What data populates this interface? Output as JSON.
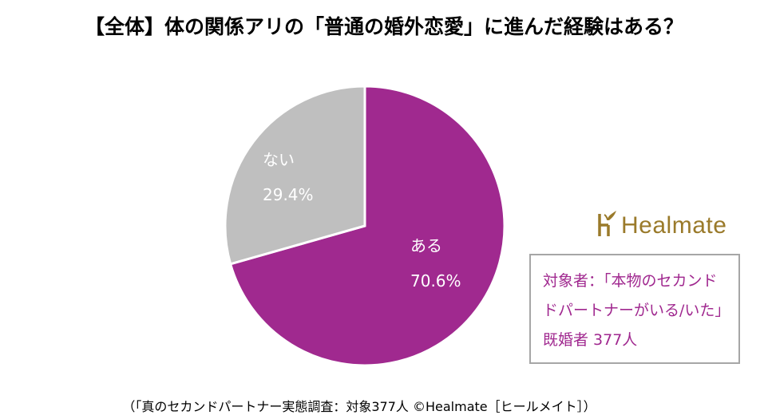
{
  "title": "【全体】体の関係アリの「普通の婚外恋愛」に進んだ経験はある？",
  "chart_data": {
    "type": "pie",
    "title": "【全体】体の関係アリの「普通の婚外恋愛」に進んだ経験はある？",
    "slices": [
      {
        "label": "ある",
        "value": 70.6,
        "value_label": "70.6%",
        "color": "#a0298f"
      },
      {
        "label": "ない",
        "value": 29.4,
        "value_label": "29.4%",
        "color": "#bfbfbf"
      }
    ],
    "start": "top",
    "direction": "clockwise"
  },
  "logo": {
    "text": "Healmate",
    "color": "#9a7a2a"
  },
  "note": {
    "line1": "対象者：「本物のセカンド",
    "line2": "ドパートナーがいる/いた」",
    "line3": "既婚者 377人"
  },
  "footer": "（「真のセカンドパートナー実態調査：対象377人 ©Healmate［ヒールメイト］）"
}
